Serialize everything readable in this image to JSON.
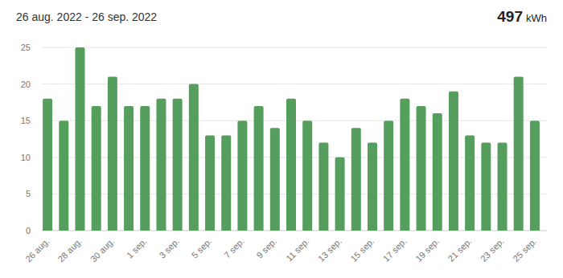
{
  "chart_data": {
    "type": "bar",
    "title": "26 aug. 2022 - 26 sep. 2022",
    "total": 497,
    "unit": "kWh",
    "categories": [
      "26 aug.",
      null,
      "28 aug.",
      null,
      "30 aug.",
      null,
      "1 sep.",
      null,
      "3 sep.",
      null,
      "5 sep.",
      null,
      "7 sep.",
      null,
      "9 sep.",
      null,
      "11 sep.",
      null,
      "13 sep.",
      null,
      "15 sep.",
      null,
      "17 sep.",
      null,
      "19 sep.",
      null,
      "21 sep.",
      null,
      "23 sep.",
      null,
      "25 sep."
    ],
    "values": [
      18,
      15,
      25,
      17,
      21,
      17,
      17,
      18,
      18,
      20,
      13,
      13,
      15,
      17,
      14,
      18,
      15,
      12,
      10,
      14,
      12,
      15,
      18,
      17,
      16,
      19,
      13,
      12,
      12,
      21,
      15
    ],
    "color": "#559e5e",
    "ylim": [
      0,
      25
    ],
    "yticks": [
      0,
      5,
      10,
      15,
      20,
      25
    ],
    "grid": true
  }
}
